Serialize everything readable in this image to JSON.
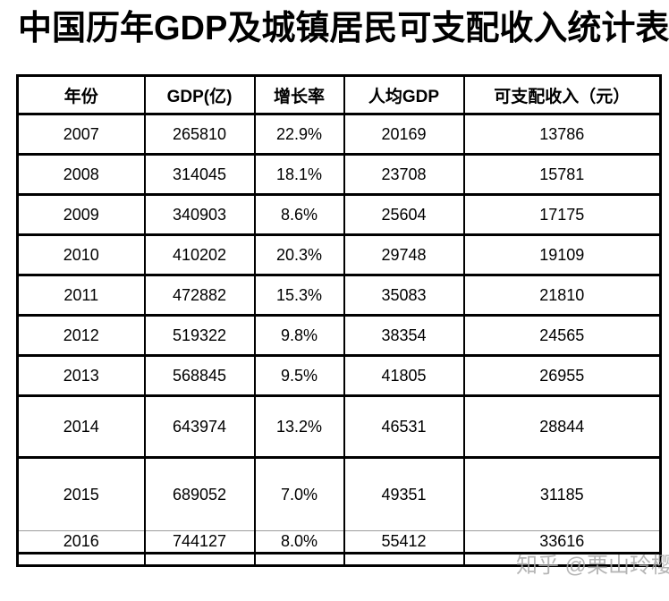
{
  "title": "中国历年GDP及城镇居民可支配收入统计表",
  "watermark": {
    "text": "知乎 @栗山玲樱",
    "color": "#a8a8a8"
  },
  "colors": {
    "background": "#ffffff",
    "border": "#000000",
    "text": "#000000",
    "thin_divider": "#9c9c9c"
  },
  "table": {
    "headers": [
      "年份",
      "GDP(亿)",
      "增长率",
      "人均GDP",
      "可支配收入（元）"
    ],
    "rows": [
      [
        "2007",
        "265810",
        "22.9%",
        "20169",
        "13786"
      ],
      [
        "2008",
        "314045",
        "18.1%",
        "23708",
        "15781"
      ],
      [
        "2009",
        "340903",
        "8.6%",
        "25604",
        "17175"
      ],
      [
        "2010",
        "410202",
        "20.3%",
        "29748",
        "19109"
      ],
      [
        "2011",
        "472882",
        "15.3%",
        "35083",
        "21810"
      ],
      [
        "2012",
        "519322",
        "9.8%",
        "38354",
        "24565"
      ],
      [
        "2013",
        "568845",
        "9.5%",
        "41805",
        "26955"
      ],
      [
        "2014",
        "643974",
        "13.2%",
        "46531",
        "28844"
      ],
      [
        "2015",
        "689052",
        "7.0%",
        "49351",
        "31185"
      ],
      [
        "2016",
        "744127",
        "8.0%",
        "55412",
        "33616"
      ]
    ]
  }
}
